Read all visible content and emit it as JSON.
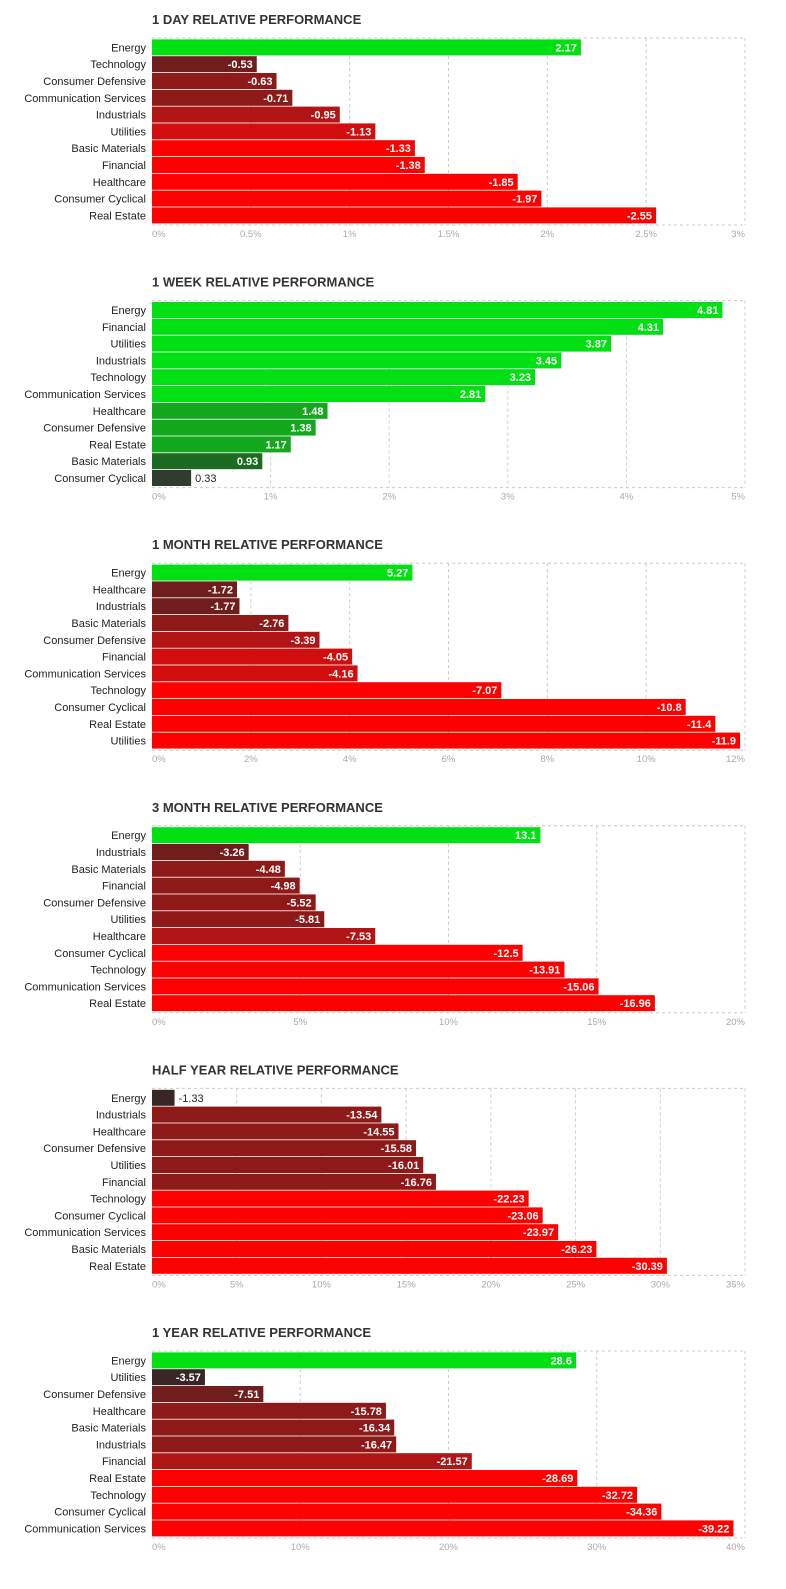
{
  "colors": {
    "green_bright": "#00e012",
    "green_mid": "#14a81f",
    "green_dark": "#1d6b23",
    "green_darkest": "#2f3c2f",
    "red_bright": "#ff0000",
    "red_strong": "#d20d0d",
    "red_mid": "#b21515",
    "red_dark": "#8e1919",
    "red_darker": "#6f1d1d",
    "red_darkest": "#3a2626",
    "grid": "#cccccc",
    "tick_text": "#aaaaaa"
  },
  "chart_data": [
    {
      "type": "bar",
      "orientation": "horizontal",
      "title": "1 DAY RELATIVE PERFORMANCE",
      "categories": [
        "Energy",
        "Technology",
        "Consumer Defensive",
        "Communication Services",
        "Industrials",
        "Utilities",
        "Basic Materials",
        "Financial",
        "Healthcare",
        "Consumer Cyclical",
        "Real Estate"
      ],
      "values": [
        "2.17",
        "-0.53",
        "-0.63",
        "-0.71",
        "-0.95",
        "-1.13",
        "-1.33",
        "-1.38",
        "-1.85",
        "-1.97",
        "-2.55"
      ],
      "bar_colors": [
        "green_bright",
        "red_darker",
        "red_dark",
        "red_dark",
        "red_mid",
        "red_strong",
        "red_bright",
        "red_bright",
        "red_bright",
        "red_bright",
        "red_bright"
      ],
      "xlim": [
        0,
        3
      ],
      "xticks": [
        "0%",
        "0.5%",
        "1%",
        "1.5%",
        "2%",
        "2.5%",
        "3%"
      ],
      "grid": true
    },
    {
      "type": "bar",
      "orientation": "horizontal",
      "title": "1 WEEK RELATIVE PERFORMANCE",
      "categories": [
        "Energy",
        "Financial",
        "Utilities",
        "Industrials",
        "Technology",
        "Communication Services",
        "Healthcare",
        "Consumer Defensive",
        "Real Estate",
        "Basic Materials",
        "Consumer Cyclical"
      ],
      "values": [
        "4.81",
        "4.31",
        "3.87",
        "3.45",
        "3.23",
        "2.81",
        "1.48",
        "1.38",
        "1.17",
        "0.93",
        "0.33"
      ],
      "bar_colors": [
        "green_bright",
        "green_bright",
        "green_bright",
        "green_bright",
        "green_bright",
        "green_bright",
        "green_mid",
        "green_mid",
        "green_mid",
        "green_dark",
        "green_darkest"
      ],
      "xlim": [
        0,
        5
      ],
      "xticks": [
        "0%",
        "1%",
        "2%",
        "3%",
        "4%",
        "5%"
      ],
      "grid": true
    },
    {
      "type": "bar",
      "orientation": "horizontal",
      "title": "1 MONTH RELATIVE PERFORMANCE",
      "categories": [
        "Energy",
        "Healthcare",
        "Industrials",
        "Basic Materials",
        "Consumer Defensive",
        "Financial",
        "Communication Services",
        "Technology",
        "Consumer Cyclical",
        "Real Estate",
        "Utilities"
      ],
      "values": [
        "5.27",
        "-1.72",
        "-1.77",
        "-2.76",
        "-3.39",
        "-4.05",
        "-4.16",
        "-7.07",
        "-10.8",
        "-11.4",
        "-11.9"
      ],
      "bar_colors": [
        "green_bright",
        "red_darker",
        "red_darker",
        "red_dark",
        "red_mid",
        "red_strong",
        "red_strong",
        "red_bright",
        "red_bright",
        "red_bright",
        "red_bright"
      ],
      "xlim": [
        0,
        12
      ],
      "xticks": [
        "0%",
        "2%",
        "4%",
        "6%",
        "8%",
        "10%",
        "12%"
      ],
      "grid": true
    },
    {
      "type": "bar",
      "orientation": "horizontal",
      "title": "3 MONTH RELATIVE PERFORMANCE",
      "categories": [
        "Energy",
        "Industrials",
        "Basic Materials",
        "Financial",
        "Consumer Defensive",
        "Utilities",
        "Healthcare",
        "Consumer Cyclical",
        "Technology",
        "Communication Services",
        "Real Estate"
      ],
      "values": [
        "13.1",
        "-3.26",
        "-4.48",
        "-4.98",
        "-5.52",
        "-5.81",
        "-7.53",
        "-12.5",
        "-13.91",
        "-15.06",
        "-16.96"
      ],
      "bar_colors": [
        "green_bright",
        "red_darker",
        "red_dark",
        "red_dark",
        "red_dark",
        "red_dark",
        "red_mid",
        "red_bright",
        "red_bright",
        "red_bright",
        "red_bright"
      ],
      "xlim": [
        0,
        20
      ],
      "xticks": [
        "0%",
        "5%",
        "10%",
        "15%",
        "20%"
      ],
      "grid": true
    },
    {
      "type": "bar",
      "orientation": "horizontal",
      "title": "HALF YEAR RELATIVE PERFORMANCE",
      "categories": [
        "Energy",
        "Industrials",
        "Healthcare",
        "Consumer Defensive",
        "Utilities",
        "Financial",
        "Technology",
        "Consumer Cyclical",
        "Communication Services",
        "Basic Materials",
        "Real Estate"
      ],
      "values": [
        "-1.33",
        "-13.54",
        "-14.55",
        "-15.58",
        "-16.01",
        "-16.76",
        "-22.23",
        "-23.06",
        "-23.97",
        "-26.23",
        "-30.39"
      ],
      "bar_colors": [
        "red_darkest",
        "red_dark",
        "red_dark",
        "red_dark",
        "red_dark",
        "red_dark",
        "red_bright",
        "red_bright",
        "red_bright",
        "red_bright",
        "red_bright"
      ],
      "xlim": [
        0,
        35
      ],
      "xticks": [
        "0%",
        "5%",
        "10%",
        "15%",
        "20%",
        "25%",
        "30%",
        "35%"
      ],
      "grid": true
    },
    {
      "type": "bar",
      "orientation": "horizontal",
      "title": "1 YEAR RELATIVE PERFORMANCE",
      "categories": [
        "Energy",
        "Utilities",
        "Consumer Defensive",
        "Healthcare",
        "Basic Materials",
        "Industrials",
        "Financial",
        "Real Estate",
        "Technology",
        "Consumer Cyclical",
        "Communication Services"
      ],
      "values": [
        "28.6",
        "-3.57",
        "-7.51",
        "-15.78",
        "-16.34",
        "-16.47",
        "-21.57",
        "-28.69",
        "-32.72",
        "-34.36",
        "-39.22"
      ],
      "bar_colors": [
        "green_bright",
        "red_darkest",
        "red_darker",
        "red_dark",
        "red_dark",
        "red_dark",
        "red_mid",
        "red_bright",
        "red_bright",
        "red_bright",
        "red_bright"
      ],
      "xlim": [
        0,
        40
      ],
      "xticks": [
        "0%",
        "10%",
        "20%",
        "30%",
        "40%"
      ],
      "grid": true
    }
  ]
}
